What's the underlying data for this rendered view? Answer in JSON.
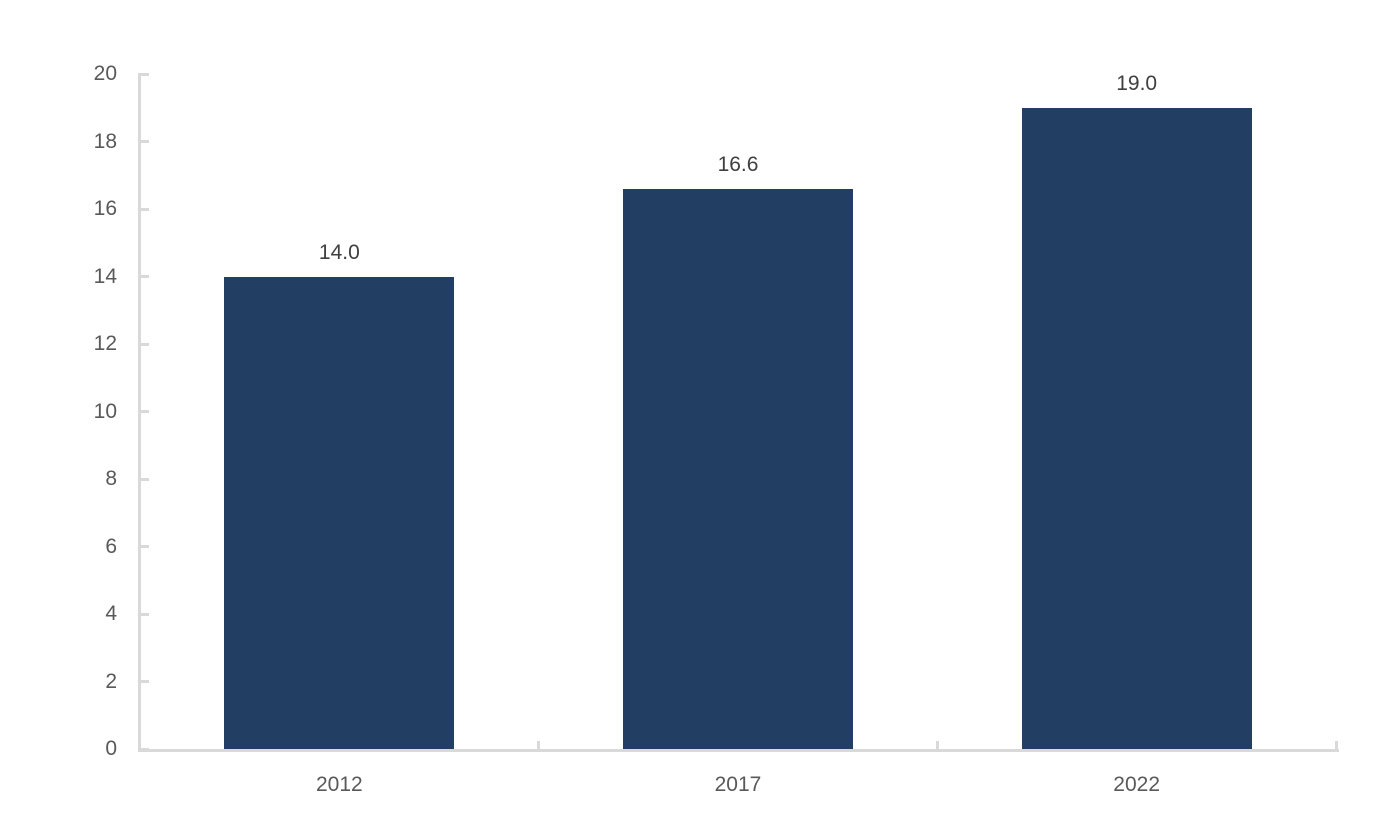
{
  "chart_data": {
    "type": "bar",
    "title": "",
    "xlabel": "",
    "ylabel": "",
    "categories": [
      "2012",
      "2017",
      "2022"
    ],
    "values": [
      14.0,
      16.6,
      19.0
    ],
    "data_labels": [
      "14.0",
      "16.6",
      "19.0"
    ],
    "ylim": [
      0,
      20
    ],
    "yticks": [
      0,
      2,
      4,
      6,
      8,
      10,
      12,
      14,
      16,
      18,
      20
    ],
    "ytick_labels": [
      "0",
      "2",
      "4",
      "6",
      "8",
      "10",
      "12",
      "14",
      "16",
      "18",
      "20"
    ],
    "grid": false,
    "legend": false,
    "colors": {
      "bar": "#223E62",
      "axis_line": "#D9D9D9",
      "tick_label": "#595959",
      "category_label": "#595959",
      "data_label": "#404040"
    }
  }
}
